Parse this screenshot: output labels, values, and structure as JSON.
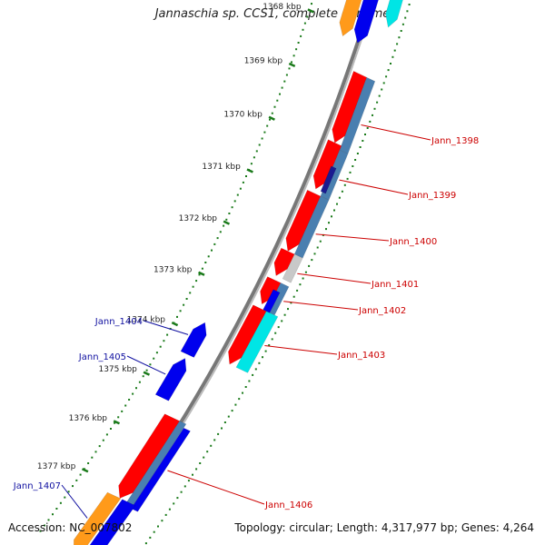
{
  "title": "Jannaschia sp. CCS1, complete genome",
  "accession": "Accession: NC_007802",
  "summary": "Topology: circular; Length: 4,317,977 bp; Genes: 4,264",
  "colors": {
    "red": "#ff0000",
    "red_dark": "#b00000",
    "blue": "#0000ee",
    "steel": "#4a7fb0",
    "cyan": "#00e5e5",
    "gray": "#c8c8c8",
    "orange": "#ff9a1a",
    "navy": "#1a1a90",
    "tick": "#1a7a1a",
    "backbone": "#777777",
    "label_red": "#cc0000",
    "label_blue": "#1010a0"
  },
  "kbp_ticks": [
    "1368 kbp",
    "1369 kbp",
    "1370 kbp",
    "1371 kbp",
    "1372 kbp",
    "1373 kbp",
    "1374 kbp",
    "1375 kbp",
    "1376 kbp",
    "1377 kbp"
  ],
  "gene_labels": [
    {
      "name": "Jann_1398",
      "strand": "forward"
    },
    {
      "name": "Jann_1399",
      "strand": "forward"
    },
    {
      "name": "Jann_1400",
      "strand": "forward"
    },
    {
      "name": "Jann_1401",
      "strand": "forward"
    },
    {
      "name": "Jann_1402",
      "strand": "forward"
    },
    {
      "name": "Jann_1403",
      "strand": "forward"
    },
    {
      "name": "Jann_1404",
      "strand": "reverse"
    },
    {
      "name": "Jann_1405",
      "strand": "reverse"
    },
    {
      "name": "Jann_1406",
      "strand": "forward"
    },
    {
      "name": "Jann_1407",
      "strand": "reverse"
    }
  ]
}
